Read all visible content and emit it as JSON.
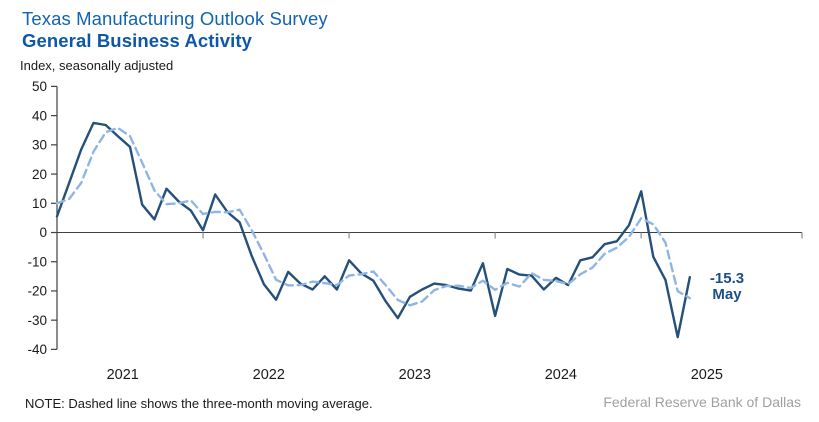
{
  "header": {
    "title": "Texas Manufacturing Outlook Survey",
    "subtitle": "General Business Activity",
    "axis_units_note": "Index, seasonally adjusted"
  },
  "colors": {
    "title": "#1264B2",
    "subtitle": "#0D57A8",
    "solid_line": "#24507A",
    "dashed_line": "#8FB6E3",
    "axis": "#404040",
    "year_tick": "#8C8C8C",
    "annotation": "#1C4E8C",
    "source_text": "#A0A0A0"
  },
  "chart_data": {
    "type": "line",
    "title": "General Business Activity",
    "ylabel": "Index, seasonally adjusted",
    "ylim": [
      -40,
      50
    ],
    "yticks": [
      50,
      40,
      30,
      20,
      10,
      0,
      -10,
      -20,
      -30,
      -40
    ],
    "grid": false,
    "zero_line": true,
    "frequency": "monthly",
    "x_range": [
      "2021-01",
      "2025-05"
    ],
    "points": 53,
    "xtick_year_labels": [
      "2021",
      "2022",
      "2023",
      "2024",
      "2025"
    ],
    "series": [
      {
        "name": "General Business Activity index",
        "style": "solid",
        "color": "#24507A",
        "values": [
          5.5,
          17.0,
          28.5,
          37.5,
          36.8,
          33.0,
          29.3,
          9.5,
          4.5,
          15.0,
          10.6,
          7.5,
          0.8,
          13.0,
          7.0,
          3.5,
          -8.0,
          -17.7,
          -23.0,
          -13.5,
          -17.5,
          -19.5,
          -15.0,
          -19.5,
          -9.5,
          -14.0,
          -16.5,
          -23.5,
          -29.3,
          -22.0,
          -19.5,
          -17.5,
          -18.0,
          -19.2,
          -19.9,
          -10.5,
          -28.5,
          -12.5,
          -14.4,
          -14.8,
          -19.5,
          -15.5,
          -18.0,
          -9.5,
          -8.5,
          -4.0,
          -3.0,
          2.5,
          14.1,
          -8.3,
          -16.3,
          -35.8,
          -15.3
        ]
      },
      {
        "name": "Three-month moving average",
        "style": "dashed",
        "color": "#8FB6E3",
        "values": [
          10.0,
          11.5,
          17.0,
          27.7,
          34.3,
          35.8,
          33.0,
          23.9,
          14.4,
          9.7,
          10.0,
          11.0,
          6.3,
          7.1,
          6.9,
          7.8,
          0.8,
          -7.4,
          -16.2,
          -18.1,
          -18.0,
          -16.8,
          -17.3,
          -18.0,
          -14.7,
          -14.3,
          -13.3,
          -18.0,
          -23.1,
          -24.9,
          -23.6,
          -19.7,
          -18.3,
          -18.2,
          -19.0,
          -16.5,
          -19.6,
          -17.2,
          -18.5,
          -13.9,
          -16.2,
          -16.6,
          -17.7,
          -14.3,
          -12.0,
          -7.3,
          -5.2,
          -1.5,
          4.9,
          2.8,
          -3.5,
          -20.1,
          -22.5
        ]
      }
    ],
    "annotation": {
      "value": "-15.3",
      "month": "May"
    }
  },
  "footer": {
    "note": "NOTE: Dashed line shows the three-month moving average.",
    "source": "Federal Reserve Bank of Dallas"
  }
}
